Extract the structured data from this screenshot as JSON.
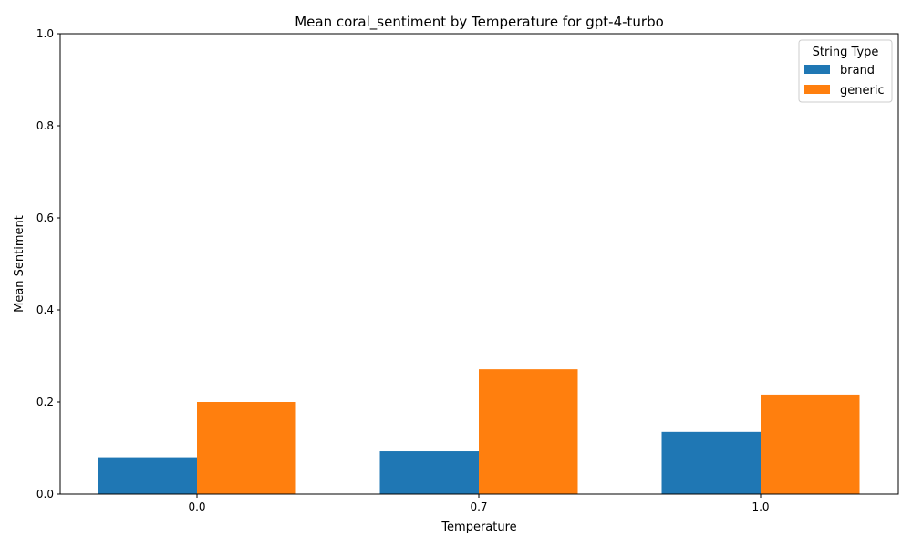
{
  "chart_data": {
    "type": "bar",
    "title": "Mean coral_sentiment by Temperature for gpt-4-turbo",
    "xlabel": "Temperature",
    "ylabel": "Mean Sentiment",
    "categories": [
      "0.0",
      "0.7",
      "1.0"
    ],
    "series": [
      {
        "name": "brand",
        "values": [
          0.08,
          0.093,
          0.135
        ],
        "color": "#1f77b4"
      },
      {
        "name": "generic",
        "values": [
          0.2,
          0.271,
          0.216
        ],
        "color": "#ff7f0e"
      }
    ],
    "ylim": [
      0,
      1
    ],
    "yticks": [
      "0.0",
      "0.2",
      "0.4",
      "0.6",
      "0.8",
      "1.0"
    ],
    "grid": false,
    "legend": {
      "title": "String Type",
      "placement": "top-right"
    }
  }
}
